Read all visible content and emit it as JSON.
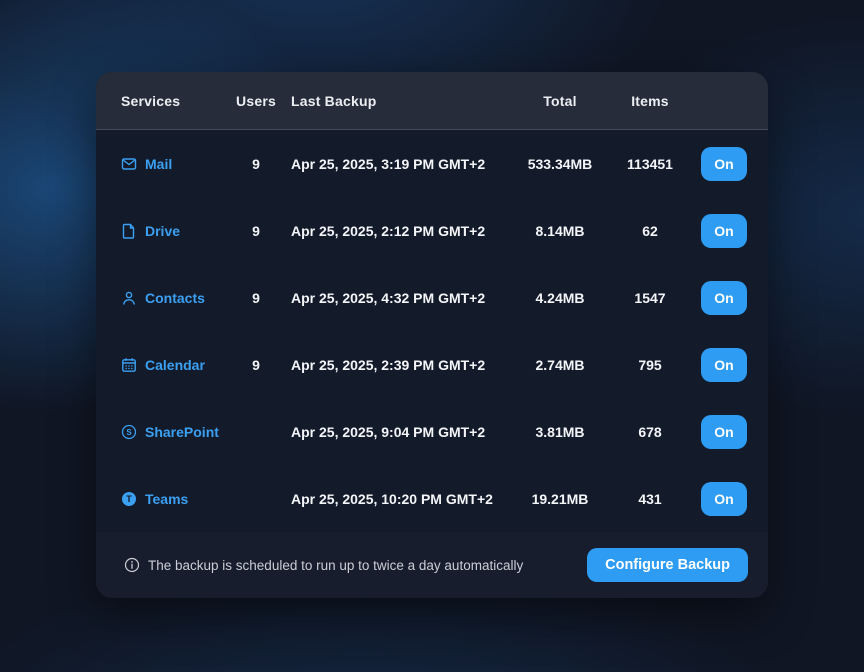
{
  "colors": {
    "accent": "#2D9CF2",
    "link": "#3BA0F2",
    "card_bg": "#131A2A",
    "header_bg": "#262C3A"
  },
  "table": {
    "headers": {
      "services": "Services",
      "users": "Users",
      "last_backup": "Last Backup",
      "total": "Total",
      "items": "Items"
    }
  },
  "rows": [
    {
      "icon": "mail-icon",
      "service": "Mail",
      "users": "9",
      "last_backup": "Apr 25, 2025, 3:19 PM GMT+2",
      "total": "533.34MB",
      "items": "113451",
      "toggle_label": "On"
    },
    {
      "icon": "file-icon",
      "service": "Drive",
      "users": "9",
      "last_backup": "Apr 25, 2025, 2:12 PM GMT+2",
      "total": "8.14MB",
      "items": "62",
      "toggle_label": "On"
    },
    {
      "icon": "contacts-icon",
      "service": "Contacts",
      "users": "9",
      "last_backup": "Apr 25, 2025, 4:32 PM GMT+2",
      "total": "4.24MB",
      "items": "1547",
      "toggle_label": "On"
    },
    {
      "icon": "calendar-icon",
      "service": "Calendar",
      "users": "9",
      "last_backup": "Apr 25, 2025, 2:39 PM GMT+2",
      "total": "2.74MB",
      "items": "795",
      "toggle_label": "On"
    },
    {
      "icon": "sharepoint-icon",
      "service": "SharePoint",
      "users": "",
      "last_backup": "Apr 25, 2025, 9:04 PM GMT+2",
      "total": "3.81MB",
      "items": "678",
      "toggle_label": "On"
    },
    {
      "icon": "teams-icon",
      "service": "Teams",
      "users": "",
      "last_backup": "Apr 25, 2025, 10:20 PM GMT+2",
      "total": "19.21MB",
      "items": "431",
      "toggle_label": "On"
    }
  ],
  "footer": {
    "info_icon": "info-icon",
    "note": "The backup is scheduled to run up to twice a day automatically",
    "configure_button": "Configure Backup"
  }
}
